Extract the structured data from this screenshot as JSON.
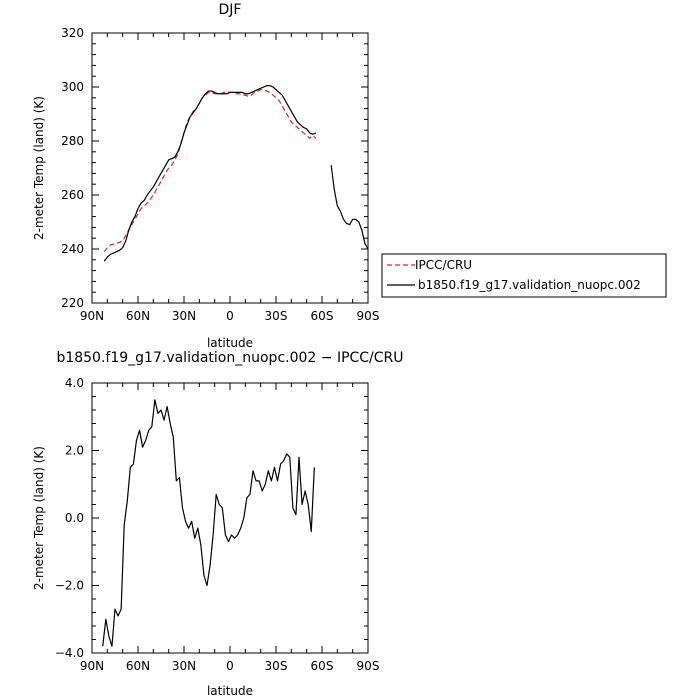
{
  "chart_data": [
    {
      "type": "line",
      "title": "DJF",
      "xlabel": "latitude",
      "ylabel": "2-meter Temp (land) (K)",
      "xlim": [
        90,
        -90
      ],
      "ylim": [
        220,
        320
      ],
      "x_ticks": [
        90,
        60,
        30,
        0,
        -30,
        -60,
        -90
      ],
      "x_tick_labels": [
        "90N",
        "60N",
        "30N",
        "0",
        "30S",
        "60S",
        "90S"
      ],
      "y_ticks": [
        220,
        240,
        260,
        280,
        300,
        320
      ],
      "y_tick_labels": [
        "220",
        "240",
        "260",
        "280",
        "300",
        "320"
      ],
      "legend": "right",
      "series": [
        {
          "name": "IPCC/CRU",
          "color": "#d62728",
          "dash": "dashed",
          "x": [
            82,
            80,
            78,
            75,
            72,
            70,
            68,
            66,
            64,
            62,
            60,
            58,
            56,
            54,
            52,
            50,
            48,
            46,
            44,
            42,
            40,
            38,
            36,
            34,
            32,
            30,
            28,
            26,
            24,
            22,
            20,
            18,
            16,
            14,
            12,
            10,
            8,
            6,
            4,
            2,
            0,
            -2,
            -4,
            -6,
            -8,
            -10,
            -12,
            -14,
            -16,
            -18,
            -20,
            -22,
            -24,
            -26,
            -28,
            -30,
            -32,
            -34,
            -36,
            -38,
            -40,
            -42,
            -44,
            -46,
            -48,
            -50,
            -52,
            -54,
            -56
          ],
          "y": [
            239,
            240.5,
            241.5,
            242,
            242.5,
            243,
            245,
            247,
            249,
            251,
            253,
            255,
            256,
            257,
            258.5,
            260,
            262,
            264,
            266,
            268,
            270,
            271,
            273,
            275,
            279,
            283,
            287,
            289,
            291,
            292,
            294,
            296,
            297,
            298,
            298,
            297.5,
            297.5,
            297.5,
            298,
            298,
            298,
            298,
            297.5,
            297.5,
            297,
            297,
            296.5,
            297,
            298,
            298.5,
            299,
            299,
            298.5,
            298,
            297,
            296,
            295,
            293,
            291,
            289,
            287,
            286,
            285,
            284,
            283,
            282,
            281,
            282,
            281
          ]
        },
        {
          "name": "b1850.f19_g17.validation_nuopc.002",
          "color": "#000000",
          "dash": "solid",
          "x": [
            82,
            80,
            78,
            76,
            74,
            72,
            70,
            68,
            66,
            64,
            62,
            60,
            58,
            56,
            54,
            52,
            50,
            48,
            46,
            44,
            42,
            40,
            38,
            36,
            34,
            32,
            30,
            28,
            26,
            24,
            22,
            20,
            18,
            16,
            14,
            12,
            10,
            8,
            6,
            4,
            2,
            0,
            -2,
            -4,
            -6,
            -8,
            -10,
            -12,
            -14,
            -16,
            -18,
            -20,
            -22,
            -24,
            -26,
            -28,
            -30,
            -32,
            -34,
            -36,
            -38,
            -40,
            -42,
            -44,
            -46,
            -48,
            -50,
            -52,
            -54,
            -56,
            null,
            -66,
            -68,
            -70,
            -72,
            -74,
            -76,
            -78,
            -80,
            -82,
            -84,
            -86,
            -88,
            -90
          ],
          "y": [
            235.5,
            237,
            238,
            238.5,
            239,
            239.5,
            240.5,
            243,
            247,
            250,
            252,
            255,
            257,
            258,
            260,
            261.5,
            263,
            265,
            267,
            269,
            271,
            273,
            273.5,
            274,
            276,
            279,
            283,
            286,
            289,
            290.5,
            292,
            294,
            296,
            297.5,
            298.5,
            298.5,
            298,
            297.5,
            297.5,
            297.5,
            297.5,
            298,
            298,
            298,
            298,
            298,
            297.5,
            297.5,
            298,
            298.5,
            299,
            299.5,
            300,
            300.5,
            300.5,
            300,
            299,
            298,
            297,
            295,
            293,
            291,
            289,
            287,
            286,
            285,
            284.5,
            283,
            282.5,
            283,
            null,
            271,
            262,
            256,
            254,
            251,
            249.5,
            249,
            251,
            251,
            250,
            247,
            242,
            240
          ]
        }
      ]
    },
    {
      "type": "line",
      "title": "b1850.f19_g17.validation_nuopc.002 − IPCC/CRU",
      "xlabel": "latitude",
      "ylabel": "2-meter Temp (land) (K)",
      "xlim": [
        90,
        -90
      ],
      "ylim": [
        -4.0,
        4.0
      ],
      "x_ticks": [
        90,
        60,
        30,
        0,
        -30,
        -60,
        -90
      ],
      "x_tick_labels": [
        "90N",
        "60N",
        "30N",
        "0",
        "30S",
        "60S",
        "90S"
      ],
      "y_ticks": [
        -4.0,
        -2.0,
        0.0,
        2.0,
        4.0
      ],
      "y_tick_labels": [
        "−4.0",
        "−2.0",
        "0.0",
        "2.0",
        "4.0"
      ],
      "series": [
        {
          "color": "#000000",
          "dash": "solid",
          "x": [
            83,
            81,
            79,
            77,
            75,
            73,
            71,
            69,
            67,
            65,
            63,
            61,
            59,
            57,
            55,
            53,
            51,
            49,
            47,
            45,
            43,
            41,
            39,
            37,
            35,
            33,
            31,
            29,
            27,
            25,
            23,
            21,
            19,
            17,
            15,
            13,
            11,
            9,
            7,
            5,
            3,
            1,
            -1,
            -3,
            -5,
            -7,
            -9,
            -11,
            -13,
            -15,
            -17,
            -19,
            -21,
            -23,
            -25,
            -27,
            -29,
            -31,
            -33,
            -35,
            -37,
            -39,
            -41,
            -43,
            -45,
            -47,
            -49,
            -51,
            -53,
            -55
          ],
          "y": [
            -3.8,
            -3.0,
            -3.5,
            -3.8,
            -2.7,
            -2.9,
            -2.7,
            -0.2,
            0.5,
            1.5,
            1.6,
            2.3,
            2.6,
            2.1,
            2.3,
            2.6,
            2.7,
            3.5,
            3.1,
            3.2,
            2.9,
            3.3,
            2.8,
            2.4,
            1.1,
            1.2,
            0.3,
            -0.1,
            -0.3,
            -0.1,
            -0.6,
            -0.3,
            -0.8,
            -1.7,
            -2.0,
            -1.4,
            -0.5,
            0.7,
            0.4,
            0.3,
            -0.5,
            -0.7,
            -0.5,
            -0.6,
            -0.5,
            -0.3,
            0.0,
            0.6,
            0.7,
            1.4,
            1.1,
            1.1,
            0.8,
            1.0,
            1.4,
            1.1,
            1.5,
            1.1,
            1.6,
            1.7,
            1.9,
            1.8,
            0.3,
            0.1,
            1.8,
            0.4,
            0.8,
            0.4,
            -0.4,
            1.5
          ]
        }
      ]
    }
  ]
}
